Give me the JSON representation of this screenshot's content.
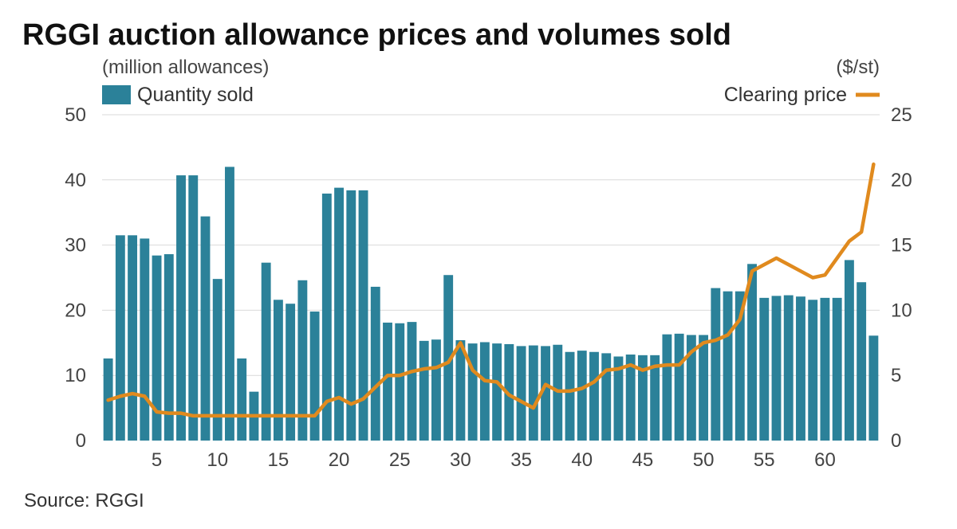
{
  "chart_data": {
    "type": "bar",
    "title": "RGGI auction allowance prices and volumes sold",
    "left_axis_unit": "(million allowances)",
    "right_axis_unit": "($/st)",
    "source": "Source: RGGI",
    "grid": true,
    "legend_placement": "top",
    "x": [
      1,
      2,
      3,
      4,
      5,
      6,
      7,
      8,
      9,
      10,
      11,
      12,
      13,
      14,
      15,
      16,
      17,
      18,
      19,
      20,
      21,
      22,
      23,
      24,
      25,
      26,
      27,
      28,
      29,
      30,
      31,
      32,
      33,
      34,
      35,
      36,
      37,
      38,
      39,
      40,
      41,
      42,
      43,
      44,
      45,
      46,
      47,
      48,
      49,
      50,
      51,
      52,
      53,
      54,
      55,
      56,
      57,
      58,
      59,
      60,
      61,
      62,
      63,
      64
    ],
    "x_ticks": [
      5,
      10,
      15,
      20,
      25,
      30,
      35,
      40,
      45,
      50,
      55,
      60
    ],
    "x_tick_labels": [
      "5",
      "10",
      "15",
      "20",
      "25",
      "30",
      "35",
      "40",
      "45",
      "50",
      "55",
      "60"
    ],
    "y_left": {
      "range": [
        0,
        50
      ],
      "ticks": [
        0,
        10,
        20,
        30,
        40,
        50
      ],
      "tick_labels": [
        "0",
        "10",
        "20",
        "30",
        "40",
        "50"
      ]
    },
    "y_right": {
      "range": [
        0,
        25
      ],
      "ticks": [
        0,
        5,
        10,
        15,
        20,
        25
      ],
      "tick_labels": [
        "0",
        "5",
        "10",
        "15",
        "20",
        "25"
      ]
    },
    "series": [
      {
        "name": "Quantity sold",
        "type": "bar",
        "axis": "left",
        "color": "#2b8199",
        "values": [
          12.6,
          31.5,
          31.5,
          31.0,
          28.4,
          28.6,
          40.7,
          40.7,
          34.4,
          24.8,
          42.0,
          12.6,
          7.5,
          27.3,
          21.6,
          21.0,
          24.6,
          19.8,
          37.9,
          38.8,
          38.4,
          38.4,
          23.6,
          18.1,
          18.0,
          18.2,
          15.3,
          15.5,
          25.4,
          15.4,
          14.9,
          15.1,
          14.9,
          14.8,
          14.5,
          14.6,
          14.5,
          14.7,
          13.6,
          13.8,
          13.6,
          13.4,
          12.9,
          13.2,
          13.1,
          13.1,
          16.3,
          16.4,
          16.2,
          16.2,
          23.4,
          22.9,
          22.9,
          27.1,
          21.9,
          22.2,
          22.3,
          22.1,
          21.6,
          21.9,
          21.9,
          27.7,
          24.3,
          16.1
        ]
      },
      {
        "name": "Clearing price",
        "type": "line",
        "axis": "right",
        "color": "#e08a1e",
        "values": [
          3.1,
          3.4,
          3.6,
          3.4,
          2.2,
          2.1,
          2.1,
          1.9,
          1.9,
          1.9,
          1.9,
          1.9,
          1.9,
          1.9,
          1.9,
          1.9,
          1.9,
          1.9,
          3.0,
          3.3,
          2.8,
          3.2,
          4.1,
          5.0,
          5.0,
          5.3,
          5.5,
          5.6,
          6.0,
          7.5,
          5.4,
          4.6,
          4.5,
          3.5,
          3.0,
          2.5,
          4.3,
          3.8,
          3.8,
          4.0,
          4.5,
          5.4,
          5.5,
          5.8,
          5.4,
          5.7,
          5.8,
          5.8,
          6.8,
          7.5,
          7.7,
          8.1,
          9.3,
          13.0,
          13.5,
          14.0,
          13.5,
          13.0,
          12.5,
          12.7,
          14.0,
          15.3,
          16.0,
          21.2
        ]
      }
    ]
  }
}
